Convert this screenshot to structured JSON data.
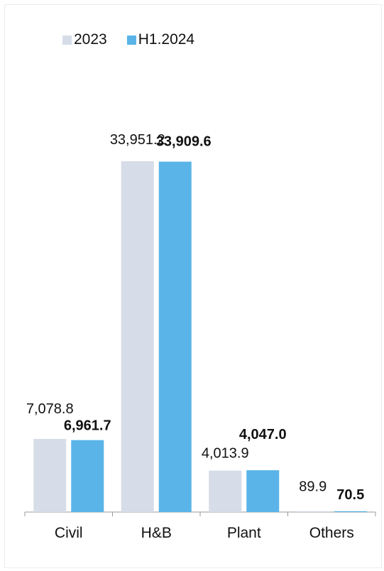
{
  "colors": {
    "s2023": "#d6dde8",
    "h12024": "#5ab4e8",
    "axis": "#9a9a9a",
    "text": "#111111"
  },
  "legend": {
    "item1": "2023",
    "item2": "H1.2024"
  },
  "chart_data": {
    "type": "bar",
    "categories": [
      "Civil",
      "H&B",
      "Plant",
      "Others"
    ],
    "series": [
      {
        "name": "2023",
        "values": [
          7078.8,
          33951.2,
          4013.9,
          89.9
        ],
        "labels": [
          "7,078.8",
          "33,951.2",
          "4,013.9",
          "89.9"
        ]
      },
      {
        "name": "H1.2024",
        "values": [
          6961.7,
          33909.6,
          4047.0,
          70.5
        ],
        "labels": [
          "6,961.7",
          "33,909.6",
          "4,047.0",
          "70.5"
        ]
      }
    ],
    "xlabel": "",
    "ylabel": "",
    "ylim": [
      0,
      33951.2
    ],
    "grid": false,
    "legend_position": "top-left"
  }
}
